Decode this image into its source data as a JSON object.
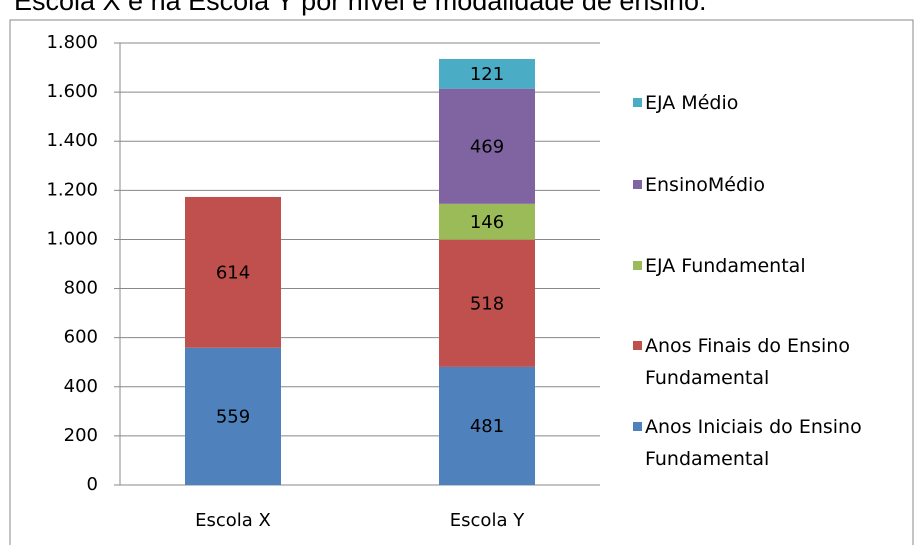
{
  "chart_data": {
    "type": "stacked_bar",
    "title": "Escola X e na Escola Y por nível e modalidade de ensino.",
    "categories": [
      "Escola X",
      "Escola Y"
    ],
    "series": [
      {
        "name": "Anos Iniciais do Ensino Fundamental",
        "color": "#4f81bd",
        "values": [
          559,
          481
        ]
      },
      {
        "name": "Anos Finais do Ensino Fundamental",
        "color": "#c0504d",
        "values": [
          614,
          518
        ]
      },
      {
        "name": "EJA Fundamental",
        "color": "#9bbb59",
        "values": [
          null,
          146
        ]
      },
      {
        "name": "EnsinoMédio",
        "color": "#8064a2",
        "values": [
          null,
          469
        ]
      },
      {
        "name": "EJA Médio",
        "color": "#4bacc6",
        "values": [
          null,
          121
        ]
      }
    ],
    "ylim": [
      0,
      1800
    ],
    "yticks": [
      0,
      200,
      400,
      600,
      800,
      {
        "value": 1000,
        "label": "1.000"
      },
      {
        "value": 1200,
        "label": "1.200"
      },
      {
        "value": 1400,
        "label": "1.400"
      },
      {
        "value": 1600,
        "label": "1.600"
      },
      {
        "value": 1800,
        "label": "1.800"
      }
    ],
    "grid": true,
    "legend": "right"
  }
}
